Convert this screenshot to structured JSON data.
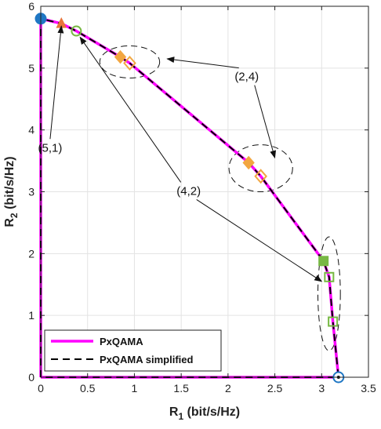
{
  "chart_data": {
    "type": "line",
    "xlabel": "R",
    "xlabel_sub": "1",
    "xlabel_unit": " (bit/s/Hz)",
    "ylabel": "R",
    "ylabel_sub": "2",
    "ylabel_unit": " (bit/s/Hz)",
    "xlim": [
      0,
      3.5
    ],
    "ylim": [
      0,
      6
    ],
    "xticks": [
      0,
      0.5,
      1,
      1.5,
      2,
      2.5,
      3,
      3.5
    ],
    "xtick_labels": [
      "0",
      "0.5",
      "1",
      "1.5",
      "2",
      "2.5",
      "3",
      "3.5"
    ],
    "yticks": [
      0,
      1,
      2,
      3,
      4,
      5,
      6
    ],
    "ytick_labels": [
      "0",
      "1",
      "2",
      "3",
      "4",
      "5",
      "6"
    ],
    "grid": true,
    "legend_position": "bottom-left",
    "series": [
      {
        "name": "PxQAMA",
        "color": "#ff00ff",
        "style": "solid",
        "x": [
          0,
          0,
          0.22,
          0.38,
          0.85,
          0.95,
          2.22,
          2.35,
          3.02,
          3.08,
          3.12,
          3.18,
          3.18,
          0
        ],
        "y": [
          0,
          5.8,
          5.72,
          5.6,
          5.18,
          5.08,
          3.47,
          3.25,
          1.88,
          1.62,
          0.9,
          0,
          0,
          0
        ]
      },
      {
        "name": "PxQAMA simplified",
        "color": "#000000",
        "style": "dashed",
        "x": [
          0,
          0,
          0.22,
          0.38,
          0.85,
          0.95,
          2.22,
          2.35,
          3.02,
          3.08,
          3.12,
          3.18,
          3.18,
          0
        ],
        "y": [
          0,
          5.8,
          5.72,
          5.6,
          5.18,
          5.08,
          3.47,
          3.25,
          1.88,
          1.62,
          0.9,
          0,
          0,
          0
        ]
      }
    ],
    "markers": [
      {
        "shape": "circle-filled",
        "color": "#1f77c4",
        "x": 0,
        "y": 5.8
      },
      {
        "shape": "circle-ring",
        "color": "#1f77c4",
        "x": 3.18,
        "y": 0
      },
      {
        "shape": "triangle",
        "color": "#e8743b",
        "x": 0.22,
        "y": 5.72
      },
      {
        "shape": "circle-open",
        "color": "#77b843",
        "x": 0.38,
        "y": 5.6
      },
      {
        "shape": "diamond-filled",
        "color": "#f2a640",
        "x": 0.85,
        "y": 5.18
      },
      {
        "shape": "diamond-open",
        "color": "#f2a640",
        "x": 0.95,
        "y": 5.08
      },
      {
        "shape": "diamond-filled",
        "color": "#f2a640",
        "x": 2.22,
        "y": 3.47
      },
      {
        "shape": "diamond-open",
        "color": "#f2a640",
        "x": 2.35,
        "y": 3.25
      },
      {
        "shape": "square-filled",
        "color": "#77b843",
        "x": 3.02,
        "y": 1.88
      },
      {
        "shape": "square-open",
        "color": "#77b843",
        "x": 3.08,
        "y": 1.62
      },
      {
        "shape": "square-open",
        "color": "#77b843",
        "x": 3.12,
        "y": 0.9
      }
    ],
    "annotations": [
      {
        "text": "(5,1)",
        "x": 0.1,
        "y": 3.65,
        "arrow_to": [
          0.22,
          5.68
        ]
      },
      {
        "text": "(2,4)",
        "x": 2.2,
        "y": 4.8,
        "arrow_to": [
          [
            1.35,
            5.15
          ],
          [
            2.5,
            3.55
          ]
        ]
      },
      {
        "text": "(4,2)",
        "x": 1.58,
        "y": 2.95,
        "arrow_to": [
          [
            0.42,
            5.5
          ],
          [
            3.0,
            1.55
          ]
        ]
      }
    ],
    "ellipses": [
      {
        "cx": 0.95,
        "cy": 5.1,
        "rx": 0.32,
        "ry": 0.26
      },
      {
        "cx": 2.35,
        "cy": 3.38,
        "rx": 0.34,
        "ry": 0.38
      },
      {
        "cx": 3.08,
        "cy": 1.35,
        "rx": 0.12,
        "ry": 0.92
      }
    ]
  }
}
